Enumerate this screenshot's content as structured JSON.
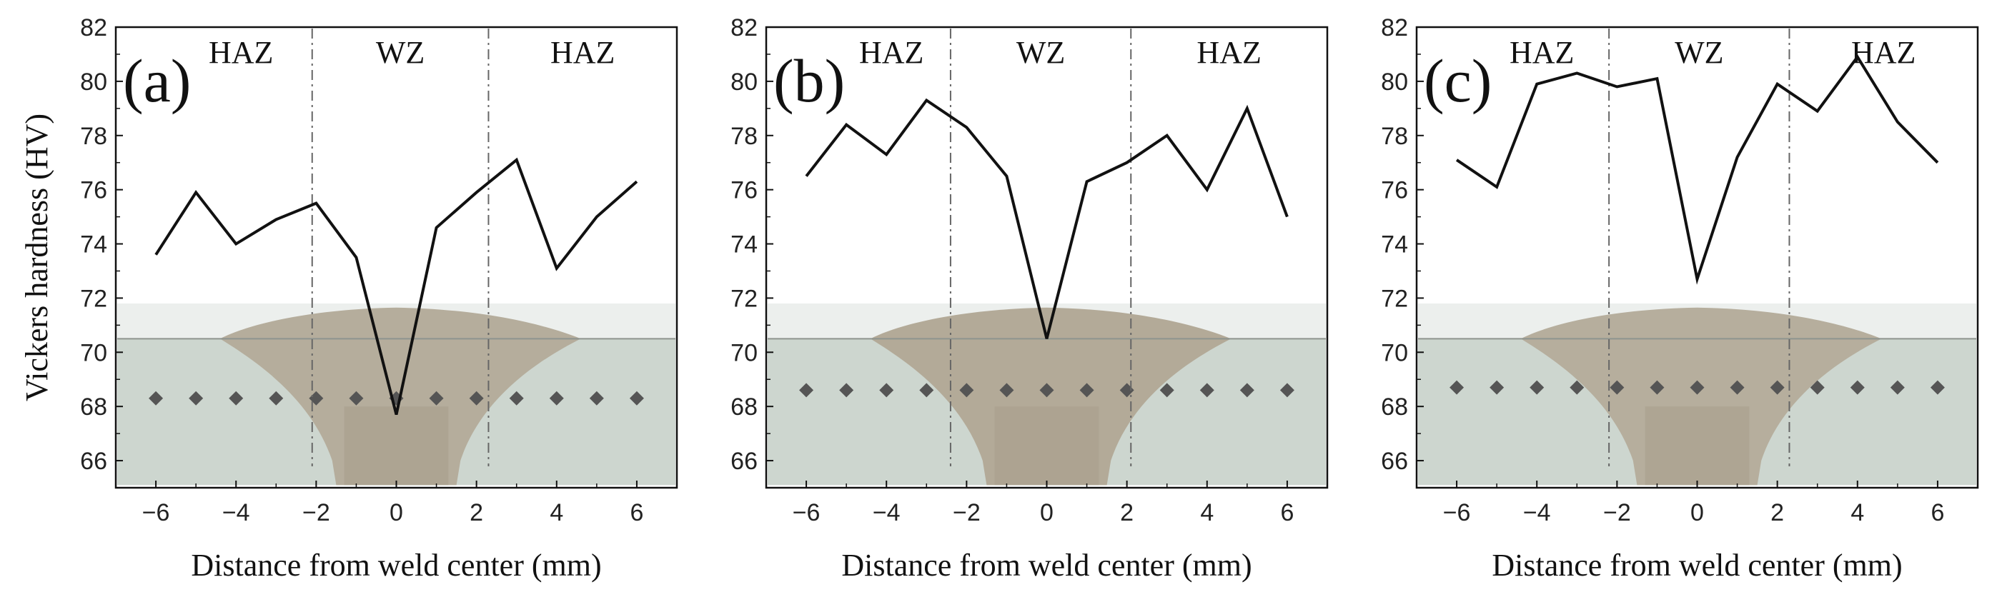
{
  "chart_data": [
    {
      "type": "line",
      "panel_label": "(a)",
      "xlabel": "Distance from weld center (mm)",
      "ylabel": "Vickers hardness (HV)",
      "xlim": [
        -7,
        7
      ],
      "ylim": [
        65,
        82
      ],
      "xticks": [
        "−6",
        "−4",
        "−2",
        "0",
        "2",
        "4",
        "6"
      ],
      "yticks": [
        "66",
        "68",
        "70",
        "72",
        "74",
        "76",
        "78",
        "80",
        "82"
      ],
      "zones": [
        "HAZ",
        "WZ",
        "HAZ"
      ],
      "boundaries": [
        -2.1,
        2.3
      ],
      "indent_x": [
        -6,
        -5,
        -4,
        -3,
        -2,
        -1,
        0,
        1,
        2,
        3,
        4,
        5,
        6
      ],
      "indent_y": 68.3,
      "series": [
        {
          "x": [
            -6,
            -5,
            -4,
            -3,
            -2,
            -1,
            0,
            1,
            2,
            3,
            4,
            5,
            6
          ],
          "values": [
            73.6,
            75.9,
            74.0,
            74.9,
            75.5,
            73.5,
            67.7,
            74.6,
            75.9,
            77.1,
            73.1,
            75.0,
            76.3
          ]
        }
      ],
      "colors": {
        "line": "#111111",
        "macro_weld": "#b5ad9c",
        "macro_base": "#cdd6cf",
        "marker": "#555555"
      }
    },
    {
      "type": "line",
      "panel_label": "(b)",
      "xlabel": "Distance from weld center (mm)",
      "ylabel": "",
      "xlim": [
        -7,
        7
      ],
      "ylim": [
        65,
        82
      ],
      "xticks": [
        "−6",
        "−4",
        "−2",
        "0",
        "2",
        "4",
        "6"
      ],
      "yticks": [
        "66",
        "68",
        "70",
        "72",
        "74",
        "76",
        "78",
        "80",
        "82"
      ],
      "zones": [
        "HAZ",
        "WZ",
        "HAZ"
      ],
      "boundaries": [
        -2.4,
        2.1
      ],
      "indent_x": [
        -6,
        -5,
        -4,
        -3,
        -2,
        -1,
        0,
        1,
        2,
        3,
        4,
        5,
        6
      ],
      "indent_y": 68.6,
      "series": [
        {
          "x": [
            -6,
            -5,
            -4,
            -3,
            -2,
            -1,
            0,
            1,
            2,
            3,
            4,
            5,
            6
          ],
          "values": [
            76.5,
            78.4,
            77.3,
            79.3,
            78.3,
            76.5,
            70.5,
            76.3,
            77.0,
            78.0,
            76.0,
            79.0,
            75.0
          ]
        }
      ],
      "colors": {
        "line": "#111111",
        "macro_weld": "#b3aa98",
        "macro_base": "#cdd6cf",
        "marker": "#555555"
      }
    },
    {
      "type": "line",
      "panel_label": "(c)",
      "xlabel": "Distance from weld center (mm)",
      "ylabel": "",
      "xlim": [
        -7,
        7
      ],
      "ylim": [
        65,
        82
      ],
      "xticks": [
        "−6",
        "−4",
        "−2",
        "0",
        "2",
        "4",
        "6"
      ],
      "yticks": [
        "66",
        "68",
        "70",
        "72",
        "74",
        "76",
        "78",
        "80",
        "82"
      ],
      "zones": [
        "HAZ",
        "WZ",
        "HAZ"
      ],
      "boundaries": [
        -2.2,
        2.3
      ],
      "indent_x": [
        -6,
        -5,
        -4,
        -3,
        -2,
        -1,
        0,
        1,
        2,
        3,
        4,
        5,
        6
      ],
      "indent_y": 68.7,
      "series": [
        {
          "x": [
            -6,
            -5,
            -4,
            -3,
            -2,
            -1,
            0,
            1,
            2,
            3,
            4,
            5,
            6
          ],
          "values": [
            77.1,
            76.1,
            79.9,
            80.3,
            79.8,
            80.1,
            72.7,
            77.2,
            79.9,
            78.9,
            80.9,
            78.5,
            77.0
          ]
        }
      ],
      "colors": {
        "line": "#111111",
        "macro_weld": "#b6ae9d",
        "macro_base": "#cdd6cf",
        "marker": "#555555"
      }
    }
  ]
}
